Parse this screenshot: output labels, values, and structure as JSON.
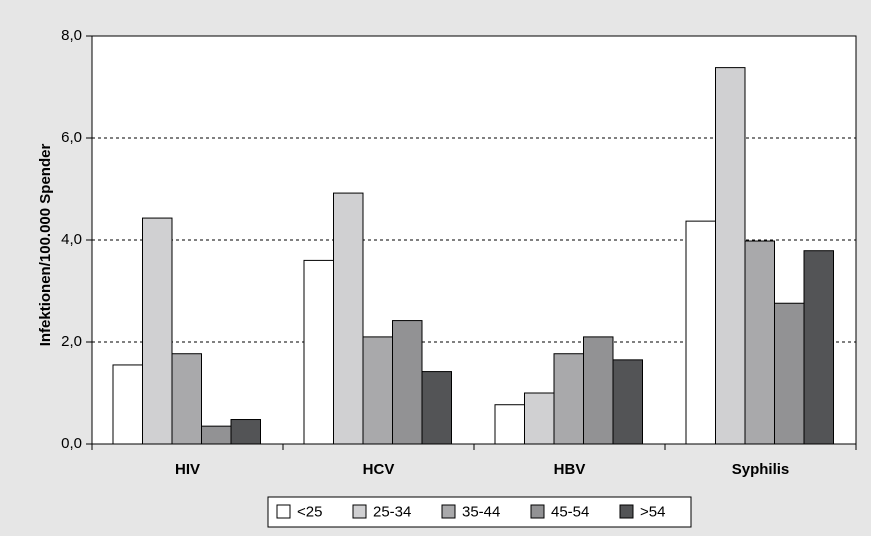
{
  "chart_data": {
    "type": "bar",
    "title": "",
    "xlabel": "",
    "ylabel": "Infektionen/100.000 Spender",
    "categories": [
      "HIV",
      "HCV",
      "HBV",
      "Syphilis"
    ],
    "ylim": [
      0,
      8
    ],
    "yticks": [
      0,
      2,
      4,
      6,
      8
    ],
    "ytick_labels": [
      "0,0",
      "2,0",
      "4,0",
      "6,0",
      "8,0"
    ],
    "grid": "horizontal dashed",
    "legend_position": "bottom",
    "series": [
      {
        "name": "<25",
        "color": "#ffffff",
        "values": [
          1.55,
          3.6,
          0.77,
          4.37
        ]
      },
      {
        "name": "25-34",
        "color": "#d0d0d2",
        "values": [
          4.43,
          4.92,
          1.0,
          7.38
        ]
      },
      {
        "name": "35-44",
        "color": "#a9a9ab",
        "values": [
          1.77,
          2.1,
          1.77,
          3.98
        ]
      },
      {
        "name": "45-54",
        "color": "#929294",
        "values": [
          0.35,
          2.42,
          2.1,
          2.76
        ]
      },
      {
        "name": ">54",
        "color": "#535456",
        "values": [
          0.48,
          1.42,
          1.65,
          3.79
        ]
      }
    ]
  }
}
